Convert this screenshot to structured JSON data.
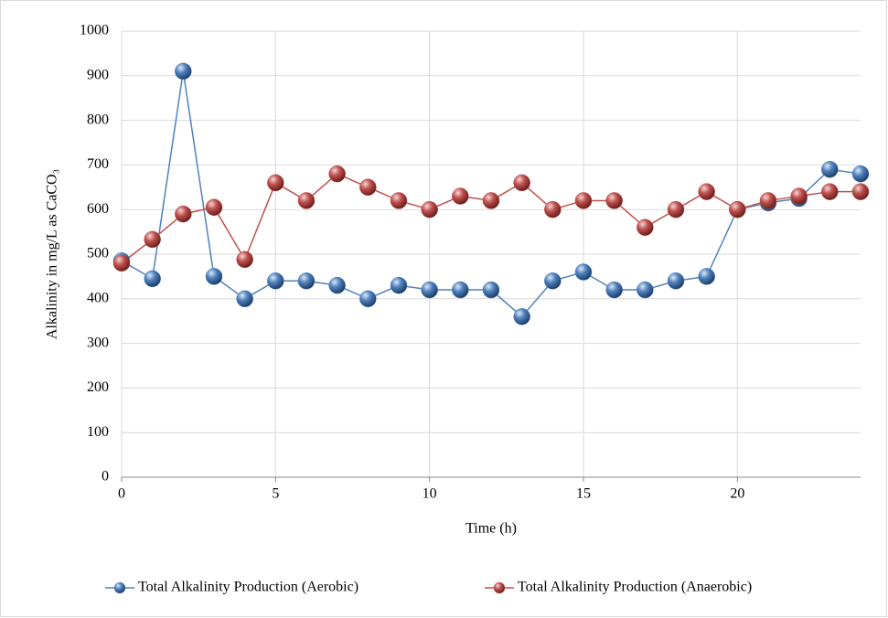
{
  "chart_data": {
    "type": "line",
    "x_label": "Time (h)",
    "y_label": "Alkalinity in mg/L as CaCO₃",
    "x": [
      0,
      1,
      2,
      3,
      4,
      5,
      6,
      7,
      8,
      9,
      10,
      11,
      12,
      13,
      14,
      15,
      16,
      17,
      18,
      19,
      20,
      21,
      22,
      23,
      24
    ],
    "series": [
      {
        "name": "Total Alkalinity Production (Aerobic)",
        "color": "#4f81bd",
        "values": [
          485,
          445,
          910,
          450,
          400,
          440,
          440,
          430,
          400,
          430,
          420,
          420,
          420,
          360,
          440,
          460,
          420,
          420,
          440,
          450,
          600,
          615,
          625,
          690,
          680
        ]
      },
      {
        "name": "Total Alkalinity Production (Anaerobic)",
        "color": "#c0504d",
        "values": [
          480,
          533,
          590,
          605,
          488,
          660,
          620,
          680,
          650,
          620,
          600,
          630,
          620,
          660,
          600,
          620,
          620,
          560,
          600,
          640,
          600,
          620,
          630,
          640,
          640
        ]
      }
    ],
    "xlim": [
      0,
      24
    ],
    "xticks": [
      0,
      5,
      10,
      15,
      20
    ],
    "ylim": [
      0,
      1000
    ],
    "yticks": [
      0,
      100,
      200,
      300,
      400,
      500,
      600,
      700,
      800,
      900,
      1000
    ],
    "grid": true,
    "legend": "bottom"
  }
}
